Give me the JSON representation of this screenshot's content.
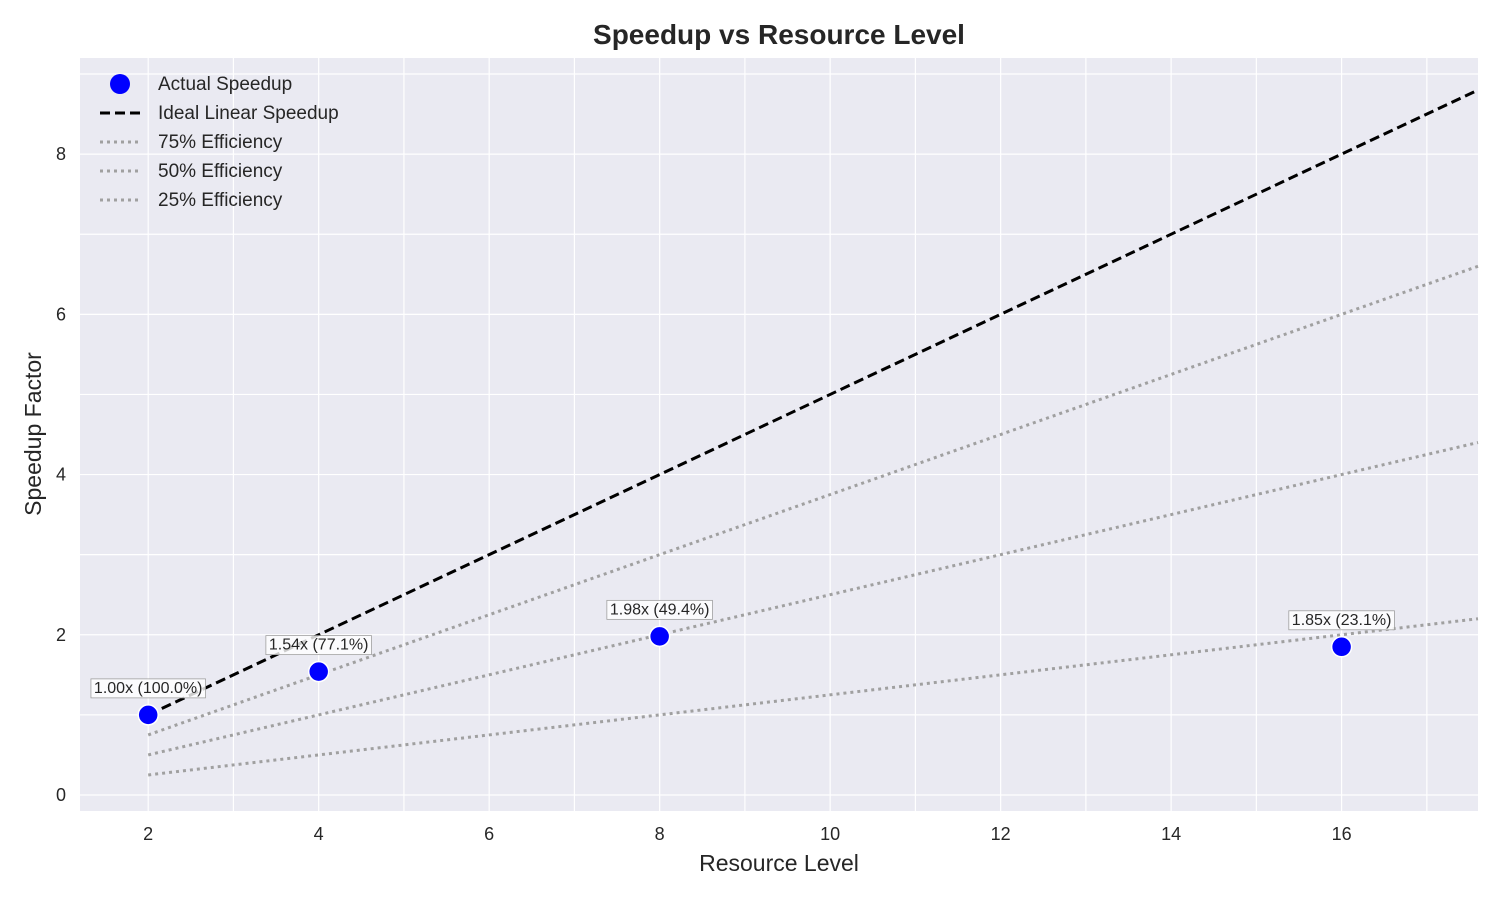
{
  "chart_data": {
    "type": "scatter",
    "title": "Speedup vs Resource Level",
    "xlabel": "Resource Level",
    "ylabel": "Speedup Factor",
    "xlim": [
      1.2,
      17.6
    ],
    "ylim": [
      -0.2,
      9.2
    ],
    "xticks": [
      2,
      4,
      6,
      8,
      10,
      12,
      14,
      16,
      18
    ],
    "yticks": [
      0,
      2,
      4,
      6,
      8
    ],
    "grid": true,
    "legend_position": "top-left",
    "background_color": "#eaeaf2",
    "series": [
      {
        "name": "Actual Speedup",
        "kind": "scatter",
        "color": "#0000ff",
        "x": [
          2,
          4,
          8,
          16
        ],
        "y": [
          1.0,
          1.54,
          1.98,
          1.85
        ],
        "labels": [
          "1.00x (100.0%)",
          "1.54x (77.1%)",
          "1.98x (49.4%)",
          "1.85x (23.1%)"
        ]
      },
      {
        "name": "Ideal Linear Speedup",
        "kind": "line",
        "style": "dashed",
        "color": "#000000",
        "x": [
          2,
          17.6
        ],
        "y": [
          1.0,
          8.8
        ]
      },
      {
        "name": "75% Efficiency",
        "kind": "line",
        "style": "dotted",
        "color": "#a0a0a0",
        "x": [
          2,
          17.6
        ],
        "y": [
          0.75,
          6.6
        ]
      },
      {
        "name": "50% Efficiency",
        "kind": "line",
        "style": "dotted",
        "color": "#a0a0a0",
        "x": [
          2,
          17.6
        ],
        "y": [
          0.5,
          4.4
        ]
      },
      {
        "name": "25% Efficiency",
        "kind": "line",
        "style": "dotted",
        "color": "#a0a0a0",
        "x": [
          2,
          17.6
        ],
        "y": [
          0.25,
          2.2
        ]
      }
    ]
  }
}
